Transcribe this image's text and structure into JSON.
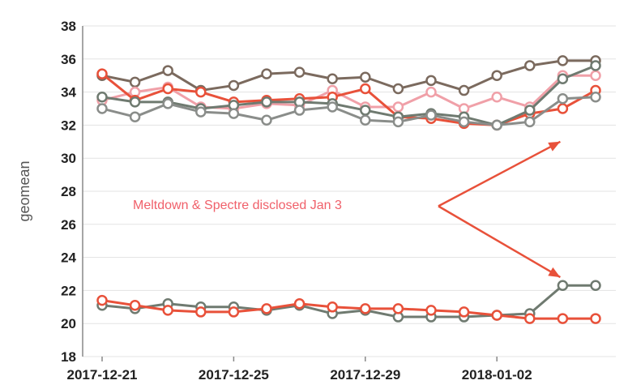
{
  "chart_data": {
    "type": "line",
    "title": "",
    "xlabel": "",
    "ylabel": "geomean",
    "ylim": [
      18,
      38
    ],
    "yticks": [
      18,
      20,
      22,
      24,
      26,
      28,
      30,
      32,
      34,
      36,
      38
    ],
    "x": [
      "2017-12-21",
      "2017-12-22",
      "2017-12-23",
      "2017-12-24",
      "2017-12-25",
      "2017-12-26",
      "2017-12-27",
      "2017-12-28",
      "2017-12-29",
      "2017-12-30",
      "2017-12-31",
      "2018-01-01",
      "2018-01-02",
      "2018-01-03",
      "2018-01-04",
      "2018-01-05"
    ],
    "xticks": [
      "2017-12-21",
      "2017-12-25",
      "2017-12-29",
      "2018-01-02"
    ],
    "grid": "horizontal",
    "legend": "none",
    "series": [
      {
        "color": "#7b6a5e",
        "values": [
          35.0,
          34.6,
          35.3,
          34.1,
          34.4,
          35.1,
          35.2,
          34.8,
          34.9,
          34.2,
          34.7,
          34.1,
          35.0,
          35.6,
          35.9,
          35.9
        ]
      },
      {
        "color": "#f0a0a8",
        "values": [
          33.5,
          34.0,
          34.3,
          33.1,
          33.0,
          33.3,
          33.2,
          34.1,
          33.1,
          33.1,
          34.0,
          33.0,
          33.7,
          33.1,
          35.0,
          35.0
        ]
      },
      {
        "color": "#e8513a",
        "values": [
          35.1,
          33.5,
          34.2,
          34.0,
          33.4,
          33.5,
          33.6,
          33.7,
          34.2,
          32.5,
          32.4,
          32.1,
          32.0,
          32.7,
          33.0,
          34.1
        ]
      },
      {
        "color": "#6f7a70",
        "values": [
          33.7,
          33.4,
          33.4,
          33.0,
          33.2,
          33.4,
          33.4,
          33.3,
          32.9,
          32.5,
          32.7,
          32.5,
          32.0,
          32.9,
          34.8,
          35.6
        ]
      },
      {
        "color": "#8a8d8a",
        "values": [
          33.0,
          32.5,
          33.3,
          32.8,
          32.7,
          32.3,
          32.9,
          33.1,
          32.3,
          32.2,
          32.6,
          32.2,
          32.0,
          32.2,
          33.6,
          33.7
        ]
      },
      {
        "color": "#6f7a70",
        "values": [
          21.1,
          20.9,
          21.2,
          21.0,
          21.0,
          20.8,
          21.1,
          20.6,
          20.8,
          20.4,
          20.4,
          20.4,
          20.5,
          20.6,
          22.3,
          22.3
        ]
      },
      {
        "color": "#e8513a",
        "values": [
          21.4,
          21.1,
          20.8,
          20.7,
          20.7,
          20.9,
          21.2,
          21.0,
          20.9,
          20.9,
          20.8,
          20.7,
          20.5,
          20.3,
          20.3,
          20.3
        ]
      }
    ],
    "annotation": {
      "text": "Meltdown & Spectre disclosed Jan 3",
      "color": "#f0606a",
      "arrow_color": "#e8513a",
      "arrow_targets": [
        {
          "x": "2018-01-04",
          "y": 31.0
        },
        {
          "x": "2018-01-04",
          "y": 22.8
        }
      ],
      "arrow_origin": {
        "x": "2018-01-01",
        "y": 27.1
      }
    }
  }
}
